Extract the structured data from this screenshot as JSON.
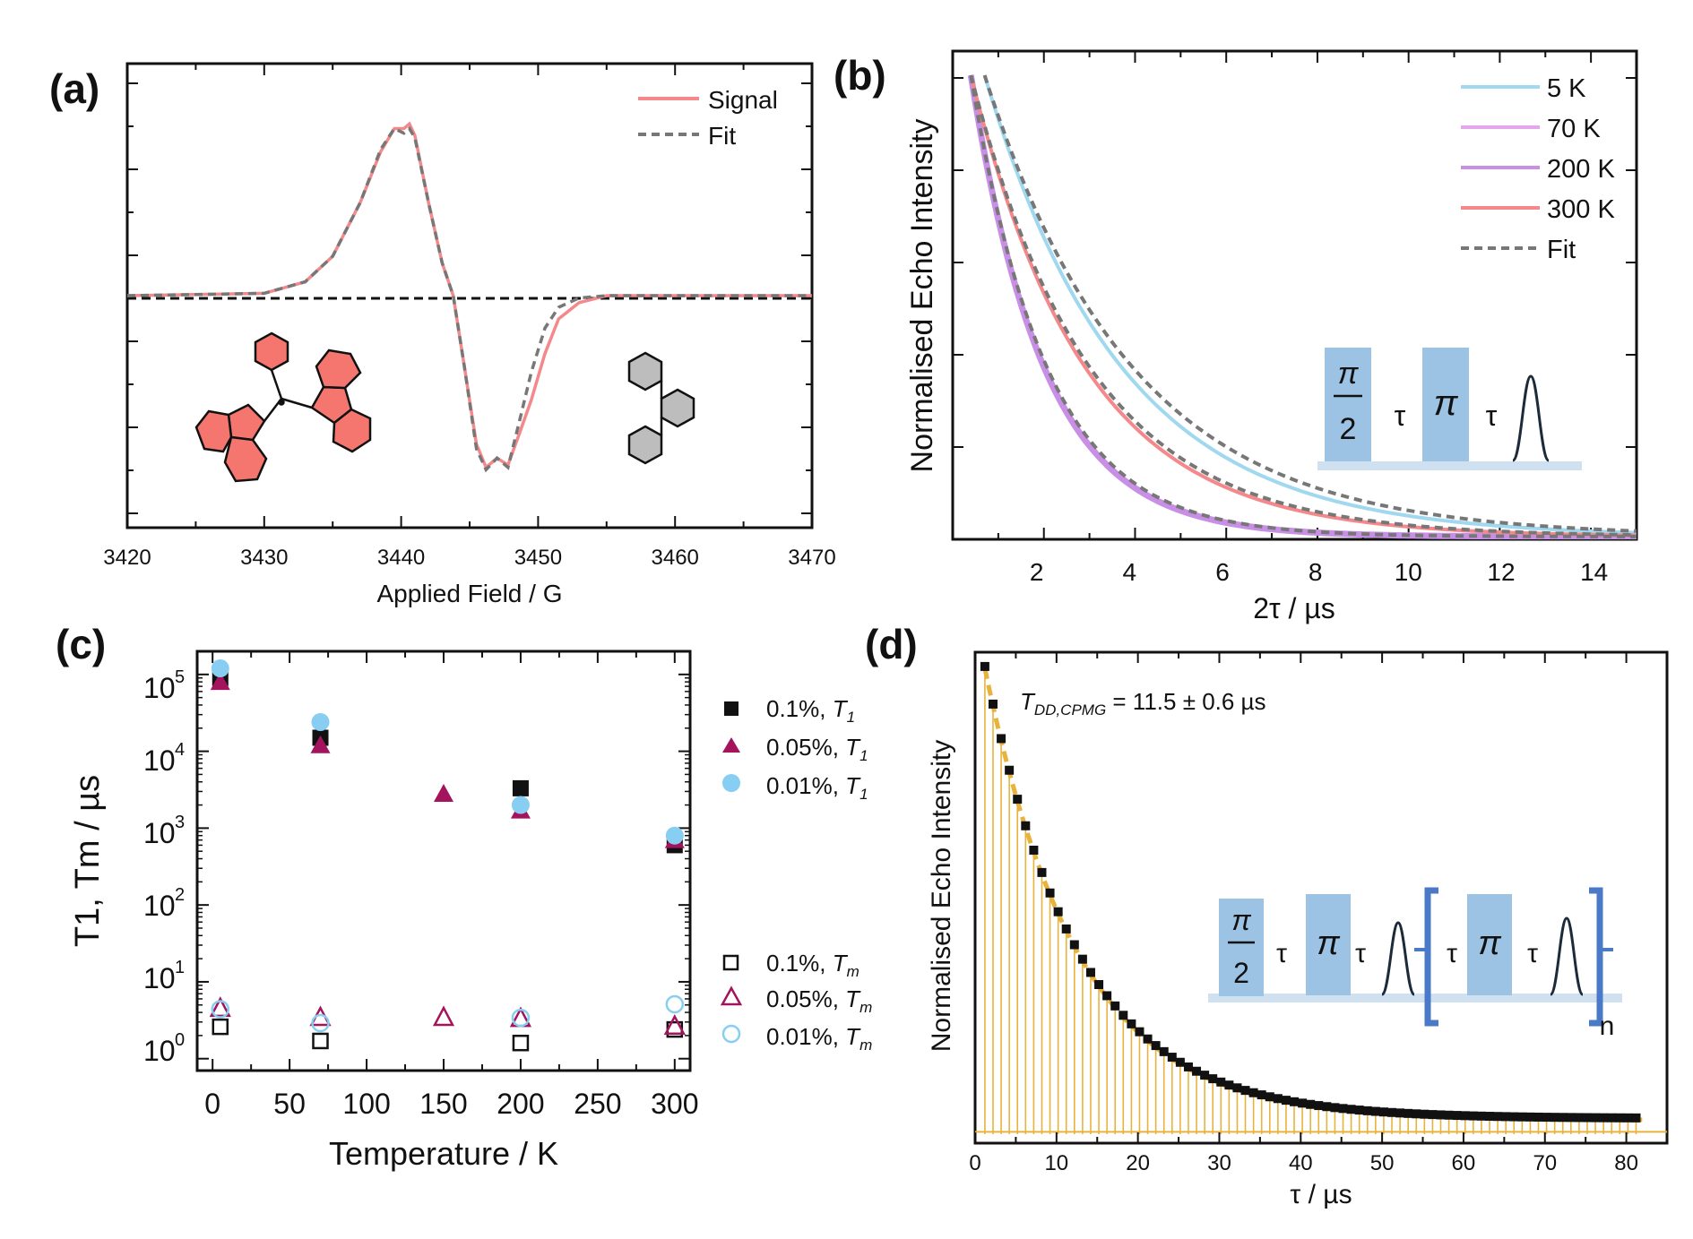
{
  "colors": {
    "signal": "#f4888a",
    "fit": "#777777",
    "k5": "#9fd8ef",
    "k70": "#e6a6ee",
    "k200": "#c98ee6",
    "k300": "#f4888a",
    "magenta": "#a3145d",
    "sky": "#87cef2",
    "black": "#111111",
    "gold": "#e8b33c",
    "pulse": "#9cc3e4",
    "bar": "#4a79c8",
    "mol_red": "#f4766f",
    "mol_gray": "#bdbdbd"
  },
  "chart_data": [
    {
      "panel": "(a)",
      "type": "line",
      "title": "",
      "xlabel": "Applied Field / G",
      "ylabel": "",
      "xlim": [
        3420,
        3470
      ],
      "ylim": [
        -1,
        1
      ],
      "xticks": [
        "3420",
        "3430",
        "3440",
        "3450",
        "3460",
        "3470"
      ],
      "legend": [
        "Signal",
        "Fit"
      ],
      "legend_position": "top-right",
      "series": [
        {
          "name": "Signal",
          "x": [
            3420,
            3430,
            3433,
            3435,
            3437,
            3438.5,
            3439.5,
            3440.2,
            3440.6,
            3441,
            3442,
            3443,
            3443.8,
            3444.6,
            3445.5,
            3446.2,
            3447,
            3447.8,
            3448.6,
            3449.5,
            3450.5,
            3451.5,
            3453,
            3455,
            3470
          ],
          "y": [
            0,
            0.01,
            0.06,
            0.17,
            0.4,
            0.62,
            0.72,
            0.72,
            0.74,
            0.69,
            0.4,
            0.14,
            0,
            -0.3,
            -0.64,
            -0.74,
            -0.7,
            -0.73,
            -0.6,
            -0.45,
            -0.25,
            -0.1,
            -0.03,
            0,
            0
          ]
        },
        {
          "name": "Fit",
          "x": [
            3420,
            3430,
            3433,
            3435,
            3437,
            3438.5,
            3439.5,
            3440.2,
            3440.6,
            3441,
            3442,
            3443,
            3443.8,
            3444.6,
            3445.5,
            3446.2,
            3447,
            3447.8,
            3448.6,
            3449.5,
            3450.5,
            3451.5,
            3453,
            3455,
            3470
          ],
          "y": [
            0,
            0.01,
            0.06,
            0.17,
            0.4,
            0.63,
            0.72,
            0.7,
            0.72,
            0.68,
            0.4,
            0.14,
            0,
            -0.3,
            -0.66,
            -0.75,
            -0.7,
            -0.74,
            -0.55,
            -0.33,
            -0.14,
            -0.05,
            -0.01,
            0,
            0
          ]
        }
      ]
    },
    {
      "panel": "(b)",
      "type": "line",
      "title": "",
      "xlabel": "2τ / µs",
      "ylabel": "Normalised Echo Intensity",
      "xlim": [
        0,
        15
      ],
      "ylim": [
        0,
        1
      ],
      "xticks": [
        "2",
        "4",
        "6",
        "8",
        "10",
        "12",
        "14"
      ],
      "legend": [
        "5 K",
        "70 K",
        "200 K",
        "300 K",
        "Fit"
      ],
      "legend_position": "top-right",
      "series": [
        {
          "name": "5 K",
          "x0": 0.7,
          "tm": 3.0
        },
        {
          "name": "70 K",
          "x0": 0.4,
          "tm": 1.6
        },
        {
          "name": "200 K",
          "x0": 0.4,
          "tm": 1.6
        },
        {
          "name": "300 K",
          "x0": 0.4,
          "tm": 2.5
        }
      ],
      "inset": {
        "pi": "π",
        "two": "2",
        "tau": "τ"
      }
    },
    {
      "panel": "(c)",
      "type": "scatter",
      "title": "",
      "xlabel": "Temperature / K",
      "ylabel": "T1, Tm / µs",
      "yscale": "log",
      "xlim": [
        -10,
        310
      ],
      "ylim": [
        0.7,
        200000
      ],
      "xticks": [
        "0",
        "50",
        "100",
        "150",
        "200",
        "250",
        "300"
      ],
      "yticks": [
        {
          "base": "10",
          "exp": "0"
        },
        {
          "base": "10",
          "exp": "1"
        },
        {
          "base": "10",
          "exp": "2"
        },
        {
          "base": "10",
          "exp": "3"
        },
        {
          "base": "10",
          "exp": "4"
        },
        {
          "base": "10",
          "exp": "5"
        }
      ],
      "legend_position": "right",
      "series": [
        {
          "name": "0.1%, T1",
          "label": "0.1%, ",
          "sym": "T",
          "sub": "1",
          "marker": "square-filled",
          "x": [
            5,
            70,
            200,
            300
          ],
          "y": [
            90000,
            15000,
            3300,
            600
          ]
        },
        {
          "name": "0.05%, T1",
          "label": "0.05%, ",
          "sym": "T",
          "sub": "1",
          "marker": "triangle-filled",
          "x": [
            5,
            70,
            150,
            200,
            300
          ],
          "y": [
            80000,
            12000,
            2800,
            1700,
            700
          ]
        },
        {
          "name": "0.01%, T1",
          "label": "0.01%, ",
          "sym": "T",
          "sub": "1",
          "marker": "circle-filled",
          "x": [
            5,
            70,
            200,
            300
          ],
          "y": [
            120000,
            24000,
            2000,
            800
          ]
        },
        {
          "name": "0.1%, Tm",
          "label": "0.1%, ",
          "sym": "T",
          "sub": "m",
          "marker": "square-open",
          "x": [
            5,
            70,
            200,
            300
          ],
          "y": [
            2.6,
            1.7,
            1.6,
            2.4
          ]
        },
        {
          "name": "0.05%, Tm",
          "label": "0.05%, ",
          "sym": "T",
          "sub": "m",
          "marker": "triangle-open",
          "x": [
            5,
            70,
            150,
            200,
            300
          ],
          "y": [
            4.6,
            3.5,
            3.5,
            3.4,
            2.7
          ]
        },
        {
          "name": "0.01%, Tm",
          "label": "0.01%, ",
          "sym": "T",
          "sub": "m",
          "marker": "circle-open",
          "x": [
            5,
            70,
            200,
            300
          ],
          "y": [
            4.4,
            2.9,
            3.4,
            5.1
          ]
        }
      ]
    },
    {
      "panel": "(d)",
      "type": "bar",
      "title": "",
      "xlabel": "τ / µs",
      "ylabel": "Normalised Echo Intensity",
      "xlim": [
        0,
        85
      ],
      "ylim": [
        0,
        1
      ],
      "xticks": [
        "0",
        "10",
        "20",
        "30",
        "40",
        "50",
        "60",
        "70",
        "80"
      ],
      "annotation": {
        "sym": "T",
        "sub": "DD,CPMG",
        "value": " = 11.5 ± 0.6  µs"
      },
      "decay": {
        "x0": 1.2,
        "T": 11.5,
        "offset": 0.03,
        "spacing": 1.0,
        "x_end": 82
      },
      "inset": {
        "n": "n",
        "pi": "π",
        "two": "2",
        "tau": "τ"
      }
    }
  ]
}
